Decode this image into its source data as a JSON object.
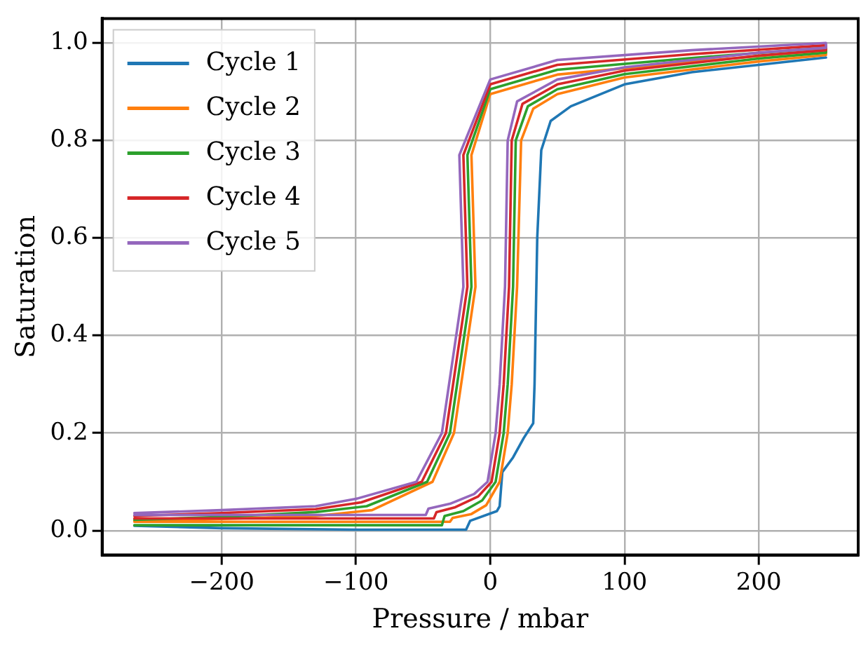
{
  "chart_data": {
    "type": "line",
    "xlabel": "Pressure / mbar",
    "ylabel": "Saturation",
    "xlim": [
      -289,
      274
    ],
    "ylim": [
      -0.05,
      1.05
    ],
    "xticks": [
      -200,
      -100,
      0,
      100,
      200
    ],
    "yticks": [
      {
        "value": 0,
        "label": "0.0"
      },
      {
        "value": 0.2,
        "label": "0.2"
      },
      {
        "value": 0.4,
        "label": "0.4"
      },
      {
        "value": 0.6,
        "label": "0.6"
      },
      {
        "value": 0.8,
        "label": "0.8"
      },
      {
        "value": 1,
        "label": "1.0"
      }
    ],
    "grid": true,
    "legend": "top left",
    "marker": "none",
    "line_style": "solid",
    "series": [
      {
        "name": "Cycle 1",
        "color": "#1f77b4",
        "x": [
          -265,
          -200,
          -100,
          -18,
          -15,
          5,
          7,
          9,
          17,
          25,
          32,
          33,
          35,
          38,
          45,
          60,
          100,
          150,
          200,
          250
        ],
        "values": [
          0.01,
          0.005,
          0.002,
          0.002,
          0.02,
          0.04,
          0.05,
          0.12,
          0.15,
          0.19,
          0.22,
          0.3,
          0.6,
          0.78,
          0.84,
          0.87,
          0.915,
          0.94,
          0.955,
          0.97
        ]
      },
      {
        "name": "Cycle 2",
        "color": "#ff7f0e",
        "x": [
          -265,
          -30,
          -28,
          -14,
          -3,
          7,
          13,
          16,
          20,
          23,
          32,
          50,
          100,
          200,
          250,
          250,
          150,
          50,
          0,
          -14,
          -11,
          -27,
          -43,
          -88,
          -130,
          -200,
          -265
        ],
        "values": [
          0.018,
          0.018,
          0.026,
          0.034,
          0.052,
          0.1,
          0.2,
          0.3,
          0.5,
          0.8,
          0.865,
          0.895,
          0.929,
          0.962,
          0.975,
          0.985,
          0.961,
          0.935,
          0.895,
          0.77,
          0.5,
          0.2,
          0.1,
          0.042,
          0.03,
          0.024,
          0.02
        ]
      },
      {
        "name": "Cycle 3",
        "color": "#2ca02c",
        "x": [
          -265,
          -36,
          -34,
          -20,
          -6,
          4,
          10,
          13,
          17,
          19,
          28,
          50,
          100,
          200,
          250,
          250,
          150,
          50,
          0,
          -17,
          -14,
          -30,
          -47,
          -92,
          -130,
          -200,
          -265
        ],
        "values": [
          0.011,
          0.011,
          0.03,
          0.04,
          0.062,
          0.1,
          0.2,
          0.3,
          0.5,
          0.8,
          0.87,
          0.905,
          0.936,
          0.968,
          0.98,
          0.99,
          0.969,
          0.945,
          0.905,
          0.77,
          0.5,
          0.2,
          0.1,
          0.05,
          0.038,
          0.028,
          0.022
        ]
      },
      {
        "name": "Cycle 4",
        "color": "#d62728",
        "x": [
          -265,
          -42,
          -40,
          -26,
          -9,
          1,
          7,
          10,
          14,
          16,
          24,
          50,
          100,
          200,
          250,
          250,
          150,
          50,
          0,
          -20,
          -17,
          -33,
          -51,
          -96,
          -130,
          -200,
          -265
        ],
        "values": [
          0.025,
          0.025,
          0.038,
          0.048,
          0.07,
          0.1,
          0.2,
          0.3,
          0.5,
          0.8,
          0.875,
          0.915,
          0.943,
          0.974,
          0.985,
          0.995,
          0.977,
          0.955,
          0.915,
          0.77,
          0.5,
          0.2,
          0.1,
          0.058,
          0.044,
          0.036,
          0.03
        ]
      },
      {
        "name": "Cycle 5",
        "color": "#9467bd",
        "x": [
          -265,
          -48,
          -46,
          -30,
          -12,
          -2,
          4,
          7,
          11,
          13,
          20,
          50,
          100,
          200,
          250,
          250,
          150,
          50,
          0,
          -23,
          -20,
          -36,
          -55,
          -100,
          -130,
          -200,
          -265
        ],
        "values": [
          0.032,
          0.032,
          0.045,
          0.055,
          0.075,
          0.1,
          0.2,
          0.3,
          0.5,
          0.8,
          0.88,
          0.925,
          0.95,
          0.98,
          0.99,
          1.0,
          0.985,
          0.965,
          0.925,
          0.77,
          0.5,
          0.2,
          0.1,
          0.065,
          0.05,
          0.042,
          0.036
        ]
      }
    ]
  }
}
